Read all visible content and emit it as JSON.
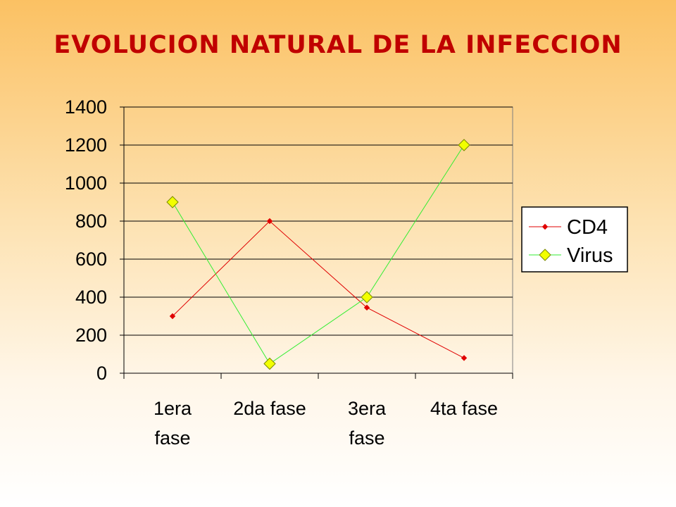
{
  "slide": {
    "title": "EVOLUCION NATURAL DE LA INFECCION"
  },
  "chart_data": {
    "type": "line",
    "title": "",
    "xlabel": "",
    "ylabel": "",
    "categories": [
      [
        "1era",
        "fase"
      ],
      [
        "2da fase"
      ],
      [
        "3era",
        "fase"
      ],
      [
        "4ta fase"
      ]
    ],
    "ylim": [
      0,
      1400
    ],
    "yticks": [
      "0",
      "200",
      "400",
      "600",
      "800",
      "1000",
      "1200",
      "1400"
    ],
    "grid": true,
    "legend_position": "right",
    "series": [
      {
        "name": "CD4",
        "values": [
          300,
          800,
          345,
          80
        ],
        "color": "#e00000",
        "marker": "small-diamond"
      },
      {
        "name": "Virus",
        "values": [
          900,
          50,
          400,
          1200
        ],
        "color": "#33ee33",
        "marker": "large-diamond",
        "marker_fill": "#f2ff00"
      }
    ]
  }
}
